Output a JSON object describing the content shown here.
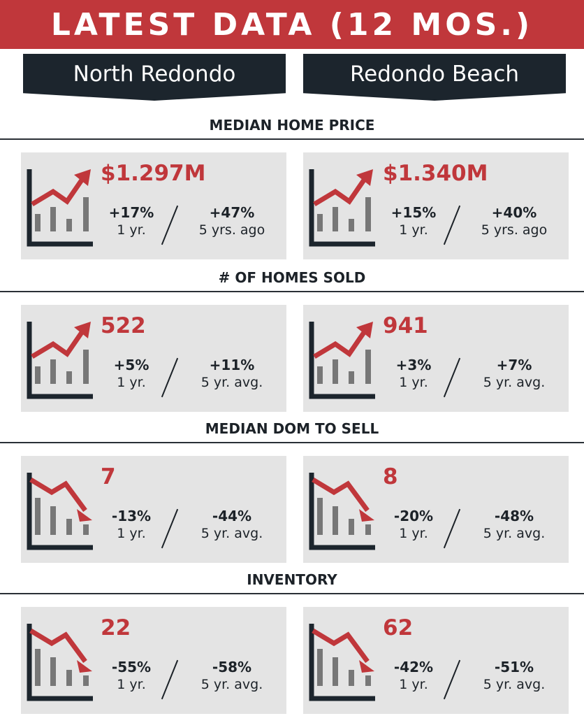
{
  "header": {
    "title": "LATEST DATA (12 MOS.)"
  },
  "regions": [
    "North Redondo",
    "Redondo Beach"
  ],
  "colors": {
    "accent": "#c0373b",
    "dark": "#1c252d",
    "card": "#e4e4e4",
    "bar": "#777777"
  },
  "sections": [
    {
      "title": "MEDIAN HOME PRICE",
      "trend_icon": "trending-up-chart-icon",
      "cards": [
        {
          "value": "$1.297M",
          "stat1": {
            "pct": "+17%",
            "label": "1 yr."
          },
          "stat2": {
            "pct": "+47%",
            "label": "5 yrs. ago"
          }
        },
        {
          "value": "$1.340M",
          "stat1": {
            "pct": "+15%",
            "label": "1 yr."
          },
          "stat2": {
            "pct": "+40%",
            "label": "5 yrs. ago"
          }
        }
      ]
    },
    {
      "title": "# OF HOMES SOLD",
      "trend_icon": "trending-up-chart-icon",
      "cards": [
        {
          "value": "522",
          "stat1": {
            "pct": "+5%",
            "label": "1 yr."
          },
          "stat2": {
            "pct": "+11%",
            "label": "5 yr. avg."
          }
        },
        {
          "value": "941",
          "stat1": {
            "pct": "+3%",
            "label": "1 yr."
          },
          "stat2": {
            "pct": "+7%",
            "label": "5 yr. avg."
          }
        }
      ]
    },
    {
      "title": "MEDIAN DOM TO SELL",
      "trend_icon": "trending-down-chart-icon",
      "cards": [
        {
          "value": "7",
          "stat1": {
            "pct": "-13%",
            "label": "1 yr."
          },
          "stat2": {
            "pct": "-44%",
            "label": "5 yr. avg."
          }
        },
        {
          "value": "8",
          "stat1": {
            "pct": "-20%",
            "label": "1 yr."
          },
          "stat2": {
            "pct": "-48%",
            "label": "5 yr. avg."
          }
        }
      ]
    },
    {
      "title": "INVENTORY",
      "trend_icon": "trending-down-chart-icon",
      "cards": [
        {
          "value": "22",
          "stat1": {
            "pct": "-55%",
            "label": "1 yr."
          },
          "stat2": {
            "pct": "-58%",
            "label": "5 yr. avg."
          }
        },
        {
          "value": "62",
          "stat1": {
            "pct": "-42%",
            "label": "1 yr."
          },
          "stat2": {
            "pct": "-51%",
            "label": "5 yr. avg."
          }
        }
      ]
    }
  ]
}
